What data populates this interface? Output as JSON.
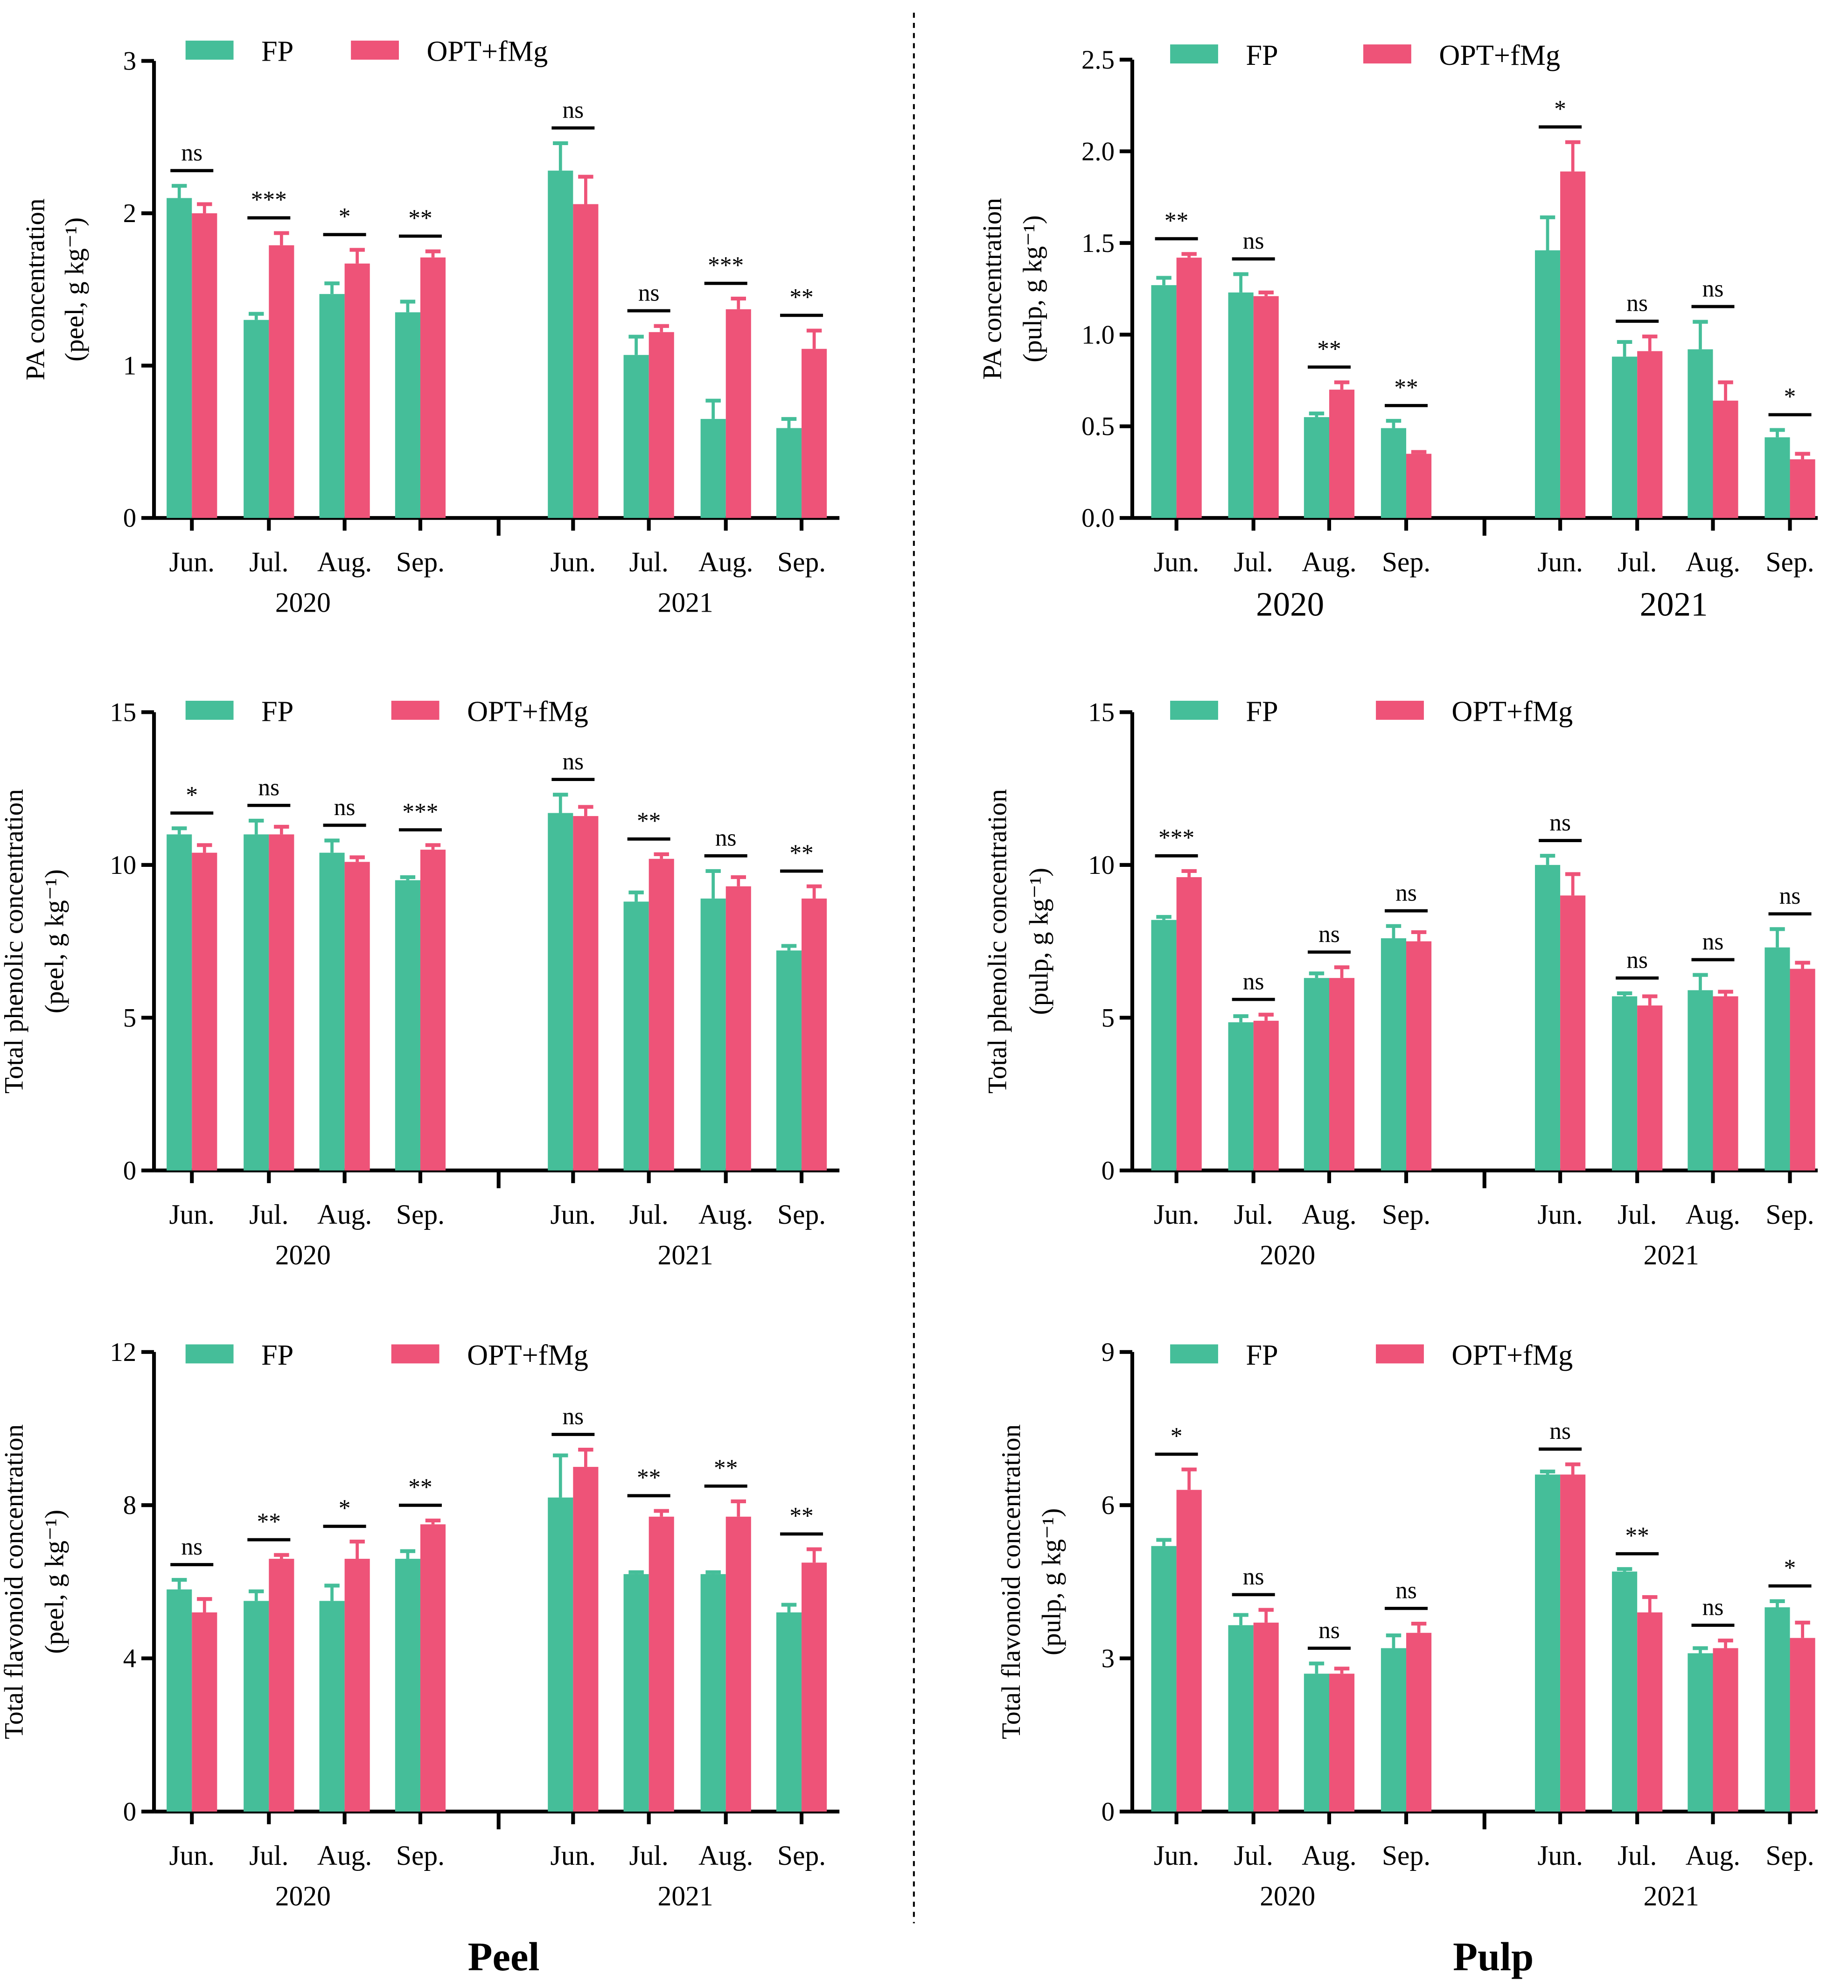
{
  "colors": {
    "FP": "#45BE99",
    "OPT+fMg": "#EE5378",
    "axis": "#000000"
  },
  "panel_labels": {
    "peel": "Peel",
    "pulp": "Pulp"
  },
  "chart_data": [
    {
      "type": "bar",
      "title": "",
      "xlabel": "",
      "ylabel": [
        "PA concentration",
        "(peel,  g kg⁻¹)"
      ],
      "ylim": [
        0,
        3
      ],
      "yticks": [
        "0",
        "1",
        "2",
        "3"
      ],
      "categories": [
        "Jun.",
        "Jul.",
        "Aug.",
        "Sep.",
        "Jun.",
        "Jul.",
        "Aug.",
        "Sep."
      ],
      "groups": [
        "2020",
        "2021"
      ],
      "series": [
        {
          "name": "FP",
          "values": [
            2.1,
            1.3,
            1.47,
            1.35,
            2.28,
            1.07,
            0.65,
            0.59
          ],
          "errors": [
            0.08,
            0.04,
            0.07,
            0.07,
            0.18,
            0.12,
            0.12,
            0.06
          ]
        },
        {
          "name": "OPT+fMg",
          "values": [
            2.0,
            1.79,
            1.67,
            1.71,
            2.06,
            1.22,
            1.37,
            1.11
          ],
          "errors": [
            0.06,
            0.08,
            0.09,
            0.04,
            0.18,
            0.04,
            0.07,
            0.12
          ]
        }
      ],
      "significance": [
        "ns",
        "***",
        "*",
        "**",
        "ns",
        "ns",
        "***",
        "**"
      ],
      "legend": "top"
    },
    {
      "type": "bar",
      "title": "",
      "xlabel": "",
      "ylabel": [
        "PA concentration",
        "(pulp,  g kg⁻¹)"
      ],
      "ylim": [
        0,
        2.5
      ],
      "yticks": [
        "0.0",
        "0.5",
        "1.0",
        "1.5",
        "2.0",
        "2.5"
      ],
      "categories": [
        "Jun.",
        "Jul.",
        "Aug.",
        "Sep.",
        "Jun.",
        "Jul.",
        "Aug.",
        "Sep."
      ],
      "groups": [
        "2020",
        "2021"
      ],
      "series": [
        {
          "name": "FP",
          "values": [
            1.27,
            1.23,
            0.55,
            0.49,
            1.46,
            0.88,
            0.92,
            0.44
          ],
          "errors": [
            0.04,
            0.1,
            0.02,
            0.04,
            0.18,
            0.08,
            0.15,
            0.04
          ]
        },
        {
          "name": "OPT+fMg",
          "values": [
            1.42,
            1.21,
            0.7,
            0.35,
            1.89,
            0.91,
            0.64,
            0.32
          ],
          "errors": [
            0.02,
            0.02,
            0.04,
            0.01,
            0.16,
            0.08,
            0.1,
            0.03
          ]
        }
      ],
      "significance": [
        "**",
        "ns",
        "**",
        "**",
        "*",
        "ns",
        "ns",
        "*"
      ],
      "legend": "top"
    },
    {
      "type": "bar",
      "title": "",
      "xlabel": "",
      "ylabel": [
        "Total phenolic concentration",
        "(peel,  g kg⁻¹)"
      ],
      "ylim": [
        0,
        15
      ],
      "yticks": [
        "0",
        "5",
        "10",
        "15"
      ],
      "categories": [
        "Jun.",
        "Jul.",
        "Aug.",
        "Sep.",
        "Jun.",
        "Jul.",
        "Aug.",
        "Sep."
      ],
      "groups": [
        "2020",
        "2021"
      ],
      "series": [
        {
          "name": "FP",
          "values": [
            11.0,
            11.0,
            10.4,
            9.5,
            11.7,
            8.8,
            8.9,
            7.2
          ],
          "errors": [
            0.2,
            0.45,
            0.4,
            0.1,
            0.6,
            0.3,
            0.9,
            0.15
          ]
        },
        {
          "name": "OPT+fMg",
          "values": [
            10.4,
            11.0,
            10.1,
            10.5,
            11.6,
            10.2,
            9.3,
            8.9
          ],
          "errors": [
            0.25,
            0.25,
            0.15,
            0.15,
            0.3,
            0.15,
            0.3,
            0.4
          ]
        }
      ],
      "significance": [
        "*",
        "ns",
        "ns",
        "***",
        "ns",
        "**",
        "ns",
        "**"
      ],
      "legend": "top"
    },
    {
      "type": "bar",
      "title": "",
      "xlabel": "",
      "ylabel": [
        "Total phenolic concentration",
        "(pulp,  g kg⁻¹)"
      ],
      "ylim": [
        0,
        15
      ],
      "yticks": [
        "0",
        "5",
        "10",
        "15"
      ],
      "categories": [
        "Jun.",
        "Jul.",
        "Aug.",
        "Sep.",
        "Jun.",
        "Jul.",
        "Aug.",
        "Sep."
      ],
      "groups": [
        "2020",
        "2021"
      ],
      "series": [
        {
          "name": "FP",
          "values": [
            8.2,
            4.85,
            6.3,
            7.6,
            10.0,
            5.7,
            5.9,
            7.3
          ],
          "errors": [
            0.1,
            0.2,
            0.15,
            0.4,
            0.3,
            0.1,
            0.5,
            0.6
          ]
        },
        {
          "name": "OPT+fMg",
          "values": [
            9.6,
            4.9,
            6.3,
            7.5,
            9.0,
            5.4,
            5.7,
            6.6
          ],
          "errors": [
            0.2,
            0.2,
            0.35,
            0.3,
            0.7,
            0.3,
            0.15,
            0.2
          ]
        }
      ],
      "significance": [
        "***",
        "ns",
        "ns",
        "ns",
        "ns",
        "ns",
        "ns",
        "ns"
      ],
      "legend": "top"
    },
    {
      "type": "bar",
      "title": "",
      "xlabel": "",
      "ylabel": [
        "Total flavonoid concentration",
        "(peel,  g kg⁻¹)"
      ],
      "ylim": [
        0,
        12
      ],
      "yticks": [
        "0",
        "4",
        "8",
        "12"
      ],
      "categories": [
        "Jun.",
        "Jul.",
        "Aug.",
        "Sep.",
        "Jun.",
        "Jul.",
        "Aug.",
        "Sep."
      ],
      "groups": [
        "2020",
        "2021"
      ],
      "series": [
        {
          "name": "FP",
          "values": [
            5.8,
            5.5,
            5.5,
            6.6,
            8.2,
            6.2,
            6.2,
            5.2
          ],
          "errors": [
            0.25,
            0.25,
            0.4,
            0.2,
            1.1,
            0.05,
            0.05,
            0.2
          ]
        },
        {
          "name": "OPT+fMg",
          "values": [
            5.2,
            6.6,
            6.6,
            7.5,
            9.0,
            7.7,
            7.7,
            6.5
          ],
          "errors": [
            0.35,
            0.1,
            0.45,
            0.1,
            0.45,
            0.15,
            0.4,
            0.35
          ]
        }
      ],
      "significance": [
        "ns",
        "**",
        "*",
        "**",
        "ns",
        "**",
        "**",
        "**"
      ],
      "legend": "top"
    },
    {
      "type": "bar",
      "title": "",
      "xlabel": "",
      "ylabel": [
        "Total flavonoid concentration",
        "(pulp,  g kg⁻¹)"
      ],
      "ylim": [
        0,
        9
      ],
      "yticks": [
        "0",
        "3",
        "6",
        "9"
      ],
      "categories": [
        "Jun.",
        "Jul.",
        "Aug.",
        "Sep.",
        "Jun.",
        "Jul.",
        "Aug.",
        "Sep."
      ],
      "groups": [
        "2020",
        "2021"
      ],
      "series": [
        {
          "name": "FP",
          "values": [
            5.2,
            3.65,
            2.7,
            3.2,
            6.6,
            4.7,
            3.1,
            4.0
          ],
          "errors": [
            0.12,
            0.2,
            0.2,
            0.25,
            0.06,
            0.05,
            0.1,
            0.12
          ]
        },
        {
          "name": "OPT+fMg",
          "values": [
            6.3,
            3.7,
            2.7,
            3.5,
            6.6,
            3.9,
            3.2,
            3.4
          ],
          "errors": [
            0.4,
            0.25,
            0.1,
            0.18,
            0.2,
            0.3,
            0.15,
            0.3
          ]
        }
      ],
      "significance": [
        "*",
        "ns",
        "ns",
        "ns",
        "ns",
        "**",
        "ns",
        "*"
      ],
      "legend": "top"
    }
  ]
}
